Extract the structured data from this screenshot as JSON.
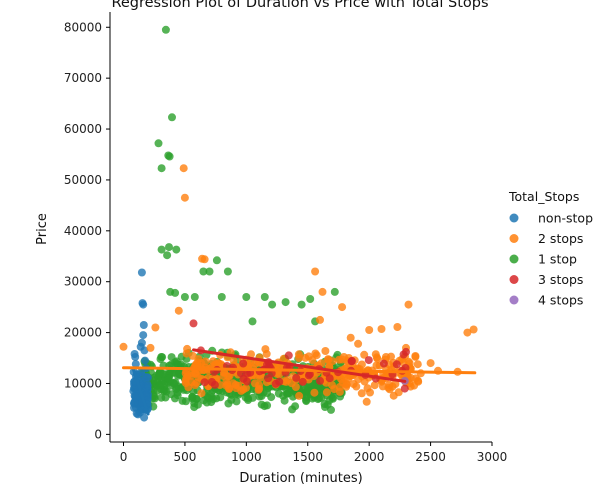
{
  "chart_data": {
    "type": "scatter",
    "title": "Regression Plot of Duration vs Price with Total Stops",
    "xlabel": "Duration (minutes)",
    "ylabel": "Price",
    "xlim": [
      -110,
      3000
    ],
    "ylim": [
      -1500,
      83000
    ],
    "xticks": [
      "0",
      "500",
      "1000",
      "1500",
      "2000",
      "2500",
      "3000"
    ],
    "yticks": [
      "0",
      "10000",
      "20000",
      "30000",
      "40000",
      "50000",
      "60000",
      "70000",
      "80000"
    ],
    "xtick_values": [
      0,
      500,
      1000,
      1500,
      2000,
      2500,
      3000
    ],
    "ytick_values": [
      0,
      10000,
      20000,
      30000,
      40000,
      50000,
      60000,
      70000,
      80000
    ],
    "grid": false,
    "legend": {
      "title": "Total_Stops",
      "placement": "right",
      "entries": [
        "non-stop",
        "2 stops",
        "1 stop",
        "3 stops",
        "4 stops"
      ]
    },
    "series": [
      {
        "name": "non-stop",
        "color": "#1f77b4",
        "cluster": {
          "x_range": [
            80,
            200
          ],
          "y_range": [
            1800,
            13500
          ],
          "count": 110
        },
        "points": [
          [
            150,
            31800
          ],
          [
            155,
            25800
          ],
          [
            160,
            25500
          ],
          [
            165,
            21500
          ],
          [
            160,
            19500
          ],
          [
            150,
            18000
          ],
          [
            90,
            15800
          ],
          [
            95,
            15200
          ],
          [
            170,
            16500
          ],
          [
            175,
            14500
          ],
          [
            100,
            13800
          ],
          [
            140,
            17200
          ],
          [
            185,
            13000
          ]
        ],
        "regression": [
          [
            80,
            12800
          ],
          [
            200,
            4000
          ]
        ]
      },
      {
        "name": "2 stops",
        "color": "#ff7f0e",
        "cluster": {
          "x_range": [
            500,
            2400
          ],
          "y_range": [
            6000,
            18500
          ],
          "count": 320
        },
        "points": [
          [
            490,
            52300
          ],
          [
            500,
            46500
          ],
          [
            640,
            34500
          ],
          [
            660,
            34400
          ],
          [
            1560,
            32000
          ],
          [
            1620,
            28000
          ],
          [
            1780,
            25000
          ],
          [
            2320,
            25500
          ],
          [
            2800,
            20000
          ],
          [
            2850,
            20600
          ],
          [
            2100,
            20700
          ],
          [
            2000,
            20500
          ],
          [
            2230,
            21100
          ],
          [
            2300,
            17000
          ],
          [
            2420,
            12000
          ],
          [
            2500,
            14000
          ],
          [
            2560,
            12500
          ],
          [
            2720,
            12300
          ],
          [
            0,
            17200
          ],
          [
            220,
            17000
          ],
          [
            260,
            21000
          ],
          [
            450,
            24300
          ],
          [
            1600,
            22500
          ],
          [
            1850,
            19000
          ],
          [
            1910,
            17800
          ],
          [
            1690,
            11900
          ],
          [
            1760,
            9300
          ],
          [
            1980,
            6400
          ],
          [
            2200,
            7600
          ]
        ],
        "regression": [
          [
            0,
            13100
          ],
          [
            2860,
            12100
          ]
        ]
      },
      {
        "name": "1 stop",
        "color": "#2ca02c",
        "cluster": {
          "x_range": [
            150,
            1780
          ],
          "y_range": [
            3500,
            17500
          ],
          "count": 650
        },
        "points": [
          [
            345,
            79500
          ],
          [
            395,
            62300
          ],
          [
            285,
            57200
          ],
          [
            365,
            54800
          ],
          [
            375,
            54600
          ],
          [
            310,
            52300
          ],
          [
            310,
            36300
          ],
          [
            370,
            36800
          ],
          [
            355,
            35200
          ],
          [
            430,
            36300
          ],
          [
            380,
            28000
          ],
          [
            420,
            27800
          ],
          [
            650,
            32000
          ],
          [
            700,
            32000
          ],
          [
            760,
            34200
          ],
          [
            850,
            32000
          ],
          [
            1210,
            25500
          ],
          [
            1320,
            26000
          ],
          [
            1450,
            25500
          ],
          [
            1720,
            28000
          ],
          [
            1520,
            26600
          ],
          [
            500,
            27000
          ],
          [
            580,
            27000
          ],
          [
            800,
            27000
          ],
          [
            1000,
            27000
          ],
          [
            1150,
            27000
          ],
          [
            1050,
            22200
          ],
          [
            1560,
            22200
          ]
        ],
        "regression": []
      },
      {
        "name": "3 stops",
        "color": "#d62728",
        "cluster": {
          "x_range": [
            550,
            2300
          ],
          "y_range": [
            8000,
            17000
          ],
          "count": 45
        },
        "points": [
          [
            570,
            21800
          ],
          [
            630,
            16500
          ],
          [
            720,
            10300
          ],
          [
            1180,
            14200
          ],
          [
            1330,
            13100
          ],
          [
            1600,
            10500
          ],
          [
            2280,
            15700
          ],
          [
            2300,
            16200
          ],
          [
            2120,
            13900
          ],
          [
            2290,
            9000
          ],
          [
            2190,
            11800
          ]
        ],
        "regression": [
          [
            570,
            16600
          ],
          [
            2290,
            10400
          ]
        ]
      },
      {
        "name": "4 stops",
        "color": "#9467bd",
        "cluster": null,
        "points": [
          [
            2290,
            10500
          ]
        ],
        "regression": []
      }
    ]
  }
}
